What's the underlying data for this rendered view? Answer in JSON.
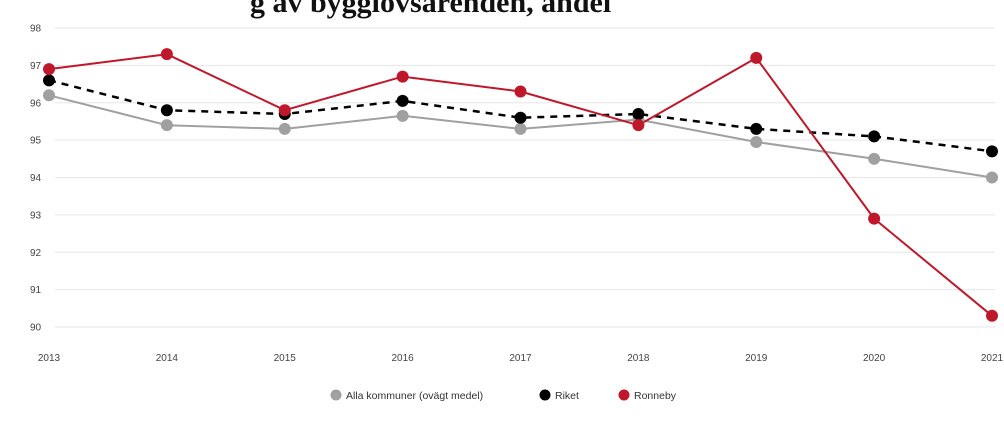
{
  "chart_data": {
    "type": "line",
    "title": "g av bygglovsärenden, andel",
    "x": [
      "2013",
      "2014",
      "2015",
      "2016",
      "2017",
      "2018",
      "2019",
      "2020",
      "2021"
    ],
    "x_tick_labels": [
      "2013",
      "2014",
      "2015",
      "2016",
      "2017",
      "2018",
      "2019",
      "2020",
      "2021"
    ],
    "y_ticks": [
      "98",
      "97",
      "96",
      "95",
      "94",
      "93",
      "92",
      "91",
      "90"
    ],
    "ylim": [
      90,
      98
    ],
    "grid": true,
    "legend_position": "bottom",
    "series": [
      {
        "name": "Alla kommuner (ovägt medel)",
        "color": "#a0a0a0",
        "style": "solid",
        "values": [
          96.2,
          95.4,
          95.3,
          95.65,
          95.3,
          95.55,
          94.95,
          94.5,
          94.0
        ]
      },
      {
        "name": "Riket",
        "color": "#000000",
        "style": "dashed",
        "values": [
          96.6,
          95.8,
          95.7,
          96.05,
          95.6,
          95.7,
          95.3,
          95.1,
          94.7
        ]
      },
      {
        "name": "Ronneby",
        "color": "#c0182b",
        "style": "solid",
        "values": [
          96.9,
          97.3,
          95.8,
          96.7,
          96.3,
          95.4,
          97.2,
          92.9,
          90.3
        ]
      }
    ]
  }
}
